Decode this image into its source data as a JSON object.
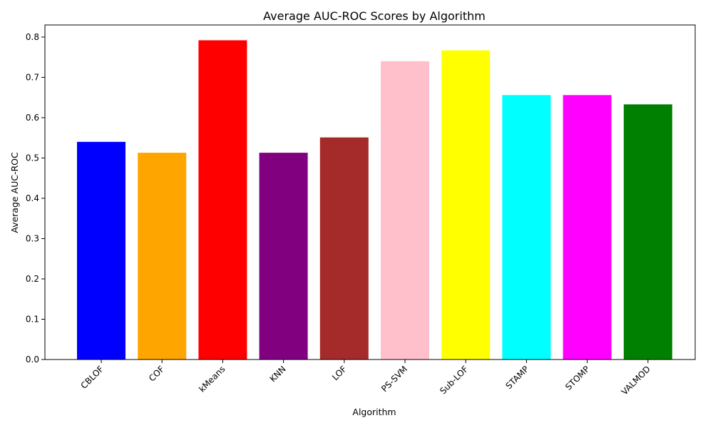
{
  "chart_data": {
    "type": "bar",
    "title": "Average AUC-ROC Scores by Algorithm",
    "xlabel": "Algorithm",
    "ylabel": "Average AUC-ROC",
    "categories": [
      "CBLOF",
      "COF",
      "kMeans",
      "KNN",
      "LOF",
      "PS-SVM",
      "Sub-LOF",
      "STAMP",
      "STOMP",
      "VALMOD"
    ],
    "values": [
      0.54,
      0.513,
      0.792,
      0.513,
      0.551,
      0.74,
      0.767,
      0.656,
      0.656,
      0.633
    ],
    "colors": [
      "#0000ff",
      "#ffa500",
      "#ff0000",
      "#800080",
      "#a52a2a",
      "#ffc0cb",
      "#ffff00",
      "#00ffff",
      "#ff00ff",
      "#008000"
    ],
    "ylim": [
      0,
      0.83
    ],
    "yticks": [
      "0.0",
      "0.1",
      "0.2",
      "0.3",
      "0.4",
      "0.5",
      "0.6",
      "0.7",
      "0.8"
    ],
    "grid": false,
    "legend": false
  }
}
